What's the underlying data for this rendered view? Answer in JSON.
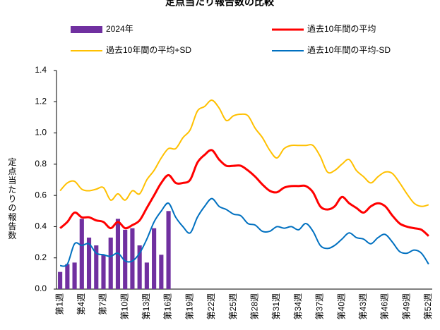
{
  "chart_data": {
    "type": "bar_line",
    "title": "定点当たり報告数の比較",
    "ylabel": "定点当たりの報告数",
    "categories": [
      "第1週",
      null,
      null,
      "第4週",
      null,
      null,
      "第7週",
      null,
      null,
      "第10週",
      null,
      null,
      "第13週",
      null,
      null,
      "第16週",
      null,
      null,
      "第19週",
      null,
      null,
      "第22週",
      null,
      null,
      "第25週",
      null,
      null,
      "第28週",
      null,
      null,
      "第31週",
      null,
      null,
      "第34週",
      null,
      null,
      "第37週",
      null,
      null,
      "第40週",
      null,
      null,
      "第43週",
      null,
      null,
      "第46週",
      null,
      null,
      "第49週",
      null,
      null,
      "第52週"
    ],
    "ylim": [
      0,
      1.4
    ],
    "yticks": [
      {
        "value": 0,
        "label": "0.0"
      },
      0.2,
      0.4,
      0.6,
      0.8,
      {
        "value": 1,
        "label": "1.0"
      },
      1.2,
      1.4
    ],
    "grid": false,
    "series": [
      {
        "name": "2024年",
        "kind": "bar",
        "color": "#7030a0",
        "values": [
          0.11,
          0.16,
          0.17,
          0.45,
          0.33,
          0.28,
          0.22,
          0.33,
          0.45,
          0.38,
          0.39,
          0.28,
          0.17,
          0.39,
          0.22,
          0.5,
          null,
          null,
          null,
          null,
          null,
          null,
          null,
          null,
          null,
          null,
          null,
          null,
          null,
          null,
          null,
          null,
          null,
          null,
          null,
          null,
          null,
          null,
          null,
          null,
          null,
          null,
          null,
          null,
          null,
          null,
          null,
          null,
          null,
          null,
          null,
          null
        ]
      },
      {
        "name": "過去10年間の平均",
        "kind": "line",
        "color": "#ff0000",
        "values": [
          0.39,
          0.43,
          0.49,
          0.46,
          0.46,
          0.44,
          0.43,
          0.39,
          0.43,
          0.39,
          0.41,
          0.44,
          0.52,
          0.6,
          0.68,
          0.73,
          0.68,
          0.68,
          0.7,
          0.81,
          0.86,
          0.89,
          0.83,
          0.79,
          0.79,
          0.79,
          0.76,
          0.72,
          0.67,
          0.63,
          0.62,
          0.65,
          0.66,
          0.66,
          0.66,
          0.62,
          0.53,
          0.51,
          0.53,
          0.59,
          0.55,
          0.52,
          0.49,
          0.53,
          0.55,
          0.53,
          0.47,
          0.42,
          0.4,
          0.39,
          0.38,
          0.34
        ]
      },
      {
        "name": "過去10年間の平均+SD",
        "kind": "line",
        "color": "#ffc000",
        "values": [
          0.63,
          0.68,
          0.69,
          0.64,
          0.63,
          0.64,
          0.65,
          0.57,
          0.61,
          0.57,
          0.63,
          0.61,
          0.7,
          0.76,
          0.84,
          0.9,
          0.9,
          0.97,
          1.02,
          1.14,
          1.17,
          1.21,
          1.16,
          1.08,
          1.11,
          1.12,
          1.11,
          1.03,
          0.97,
          0.89,
          0.84,
          0.9,
          0.92,
          0.92,
          0.92,
          0.92,
          0.85,
          0.75,
          0.76,
          0.8,
          0.83,
          0.76,
          0.72,
          0.68,
          0.72,
          0.75,
          0.74,
          0.68,
          0.61,
          0.55,
          0.53,
          0.54
        ]
      },
      {
        "name": "過去10年間の平均-SD",
        "kind": "line",
        "color": "#0070c0",
        "values": [
          0.15,
          0.16,
          0.29,
          0.28,
          0.29,
          0.23,
          0.22,
          0.21,
          0.23,
          0.18,
          0.18,
          0.23,
          0.32,
          0.43,
          0.5,
          0.55,
          0.46,
          0.4,
          0.36,
          0.46,
          0.53,
          0.58,
          0.53,
          0.51,
          0.48,
          0.47,
          0.42,
          0.41,
          0.37,
          0.37,
          0.4,
          0.39,
          0.4,
          0.38,
          0.42,
          0.37,
          0.28,
          0.26,
          0.28,
          0.32,
          0.36,
          0.33,
          0.32,
          0.29,
          0.33,
          0.35,
          0.3,
          0.24,
          0.23,
          0.25,
          0.23,
          0.16
        ]
      }
    ]
  }
}
